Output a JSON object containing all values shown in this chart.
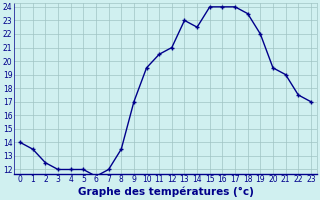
{
  "hours": [
    0,
    1,
    2,
    3,
    4,
    5,
    6,
    7,
    8,
    9,
    10,
    11,
    12,
    13,
    14,
    15,
    16,
    17,
    18,
    19,
    20,
    21,
    22,
    23
  ],
  "temperatures": [
    14.0,
    13.5,
    12.5,
    12.0,
    12.0,
    12.0,
    11.5,
    12.0,
    13.5,
    17.0,
    19.5,
    20.5,
    21.0,
    23.0,
    22.5,
    24.0,
    24.0,
    24.0,
    23.5,
    22.0,
    19.5,
    19.0,
    17.5,
    17.0
  ],
  "xlabel": "Graphe des températures (°c)",
  "ylim_min": 12,
  "ylim_max": 24,
  "xlim_min": 0,
  "xlim_max": 23,
  "yticks": [
    12,
    13,
    14,
    15,
    16,
    17,
    18,
    19,
    20,
    21,
    22,
    23,
    24
  ],
  "xticks": [
    0,
    1,
    2,
    3,
    4,
    5,
    6,
    7,
    8,
    9,
    10,
    11,
    12,
    13,
    14,
    15,
    16,
    17,
    18,
    19,
    20,
    21,
    22,
    23
  ],
  "line_color": "#00008b",
  "marker": "+",
  "bg_color": "#d0f0f0",
  "grid_color": "#a0c4c4",
  "tick_label_color": "#00008b",
  "xlabel_fontsize": 7.5,
  "tick_fontsize": 5.5,
  "linewidth": 1.0,
  "markersize": 3.5,
  "markeredgewidth": 1.0
}
